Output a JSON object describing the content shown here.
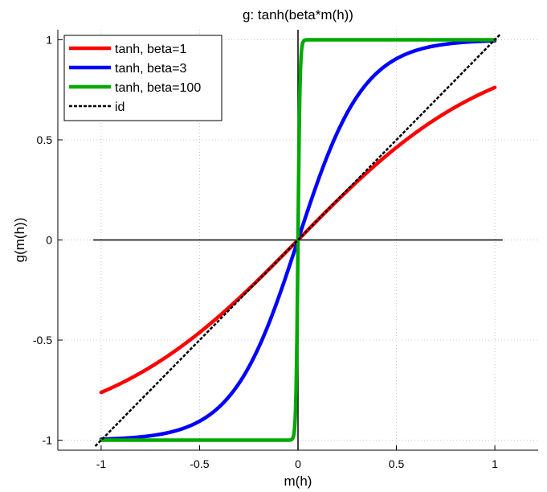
{
  "chart_data": {
    "type": "line",
    "title": "g: tanh(beta*m(h))",
    "xlabel": "m(h)",
    "ylabel": "g(m(h))",
    "xlim": [
      -1.22,
      1.22
    ],
    "ylim": [
      -1.05,
      1.05
    ],
    "xticks": [
      -1,
      -0.5,
      0,
      0.5,
      1
    ],
    "xtick_labels": [
      "-1",
      "-0.5",
      "0",
      "0.5",
      "1"
    ],
    "yticks": [
      -1,
      -0.5,
      0,
      0.5,
      1
    ],
    "ytick_labels": [
      "-1",
      "-0.5",
      "0",
      "0.5",
      "1"
    ],
    "grid": true,
    "legend_position": "top-left",
    "reference_lines": [
      {
        "orientation": "horizontal",
        "value": 0,
        "from": -1.04,
        "to": 1.04
      },
      {
        "orientation": "vertical",
        "value": 0
      }
    ],
    "series": [
      {
        "name": "tanh, beta=1",
        "color": "#ff0000",
        "style": "solid",
        "beta": 1,
        "x_range": [
          -1,
          1
        ],
        "x": [
          -1,
          -0.75,
          -0.5,
          -0.25,
          0,
          0.25,
          0.5,
          0.75,
          1
        ],
        "values": [
          -0.7616,
          -0.6351,
          -0.4621,
          -0.2449,
          0,
          0.2449,
          0.4621,
          0.6351,
          0.7616
        ]
      },
      {
        "name": "tanh, beta=3",
        "color": "#0000ff",
        "style": "solid",
        "beta": 3,
        "x_range": [
          -1,
          1
        ],
        "x": [
          -1,
          -0.75,
          -0.5,
          -0.25,
          0,
          0.25,
          0.5,
          0.75,
          1
        ],
        "values": [
          -0.9951,
          -0.978,
          -0.9051,
          -0.6351,
          0,
          0.6351,
          0.9051,
          0.978,
          0.9951
        ]
      },
      {
        "name": "tanh, beta=100",
        "color": "#00aa00",
        "style": "solid",
        "beta": 100,
        "x_range": [
          -1,
          1
        ],
        "x": [
          -1,
          -0.05,
          -0.02,
          -0.01,
          0,
          0.01,
          0.02,
          0.05,
          1
        ],
        "values": [
          -1,
          -1,
          -0.964,
          -0.7616,
          0,
          0.7616,
          0.964,
          1,
          1
        ]
      },
      {
        "name": "id",
        "color": "#000000",
        "style": "dashed",
        "x_range": [
          -1.03,
          1.03
        ],
        "x": [
          -1.03,
          1.03
        ],
        "values": [
          -1.03,
          1.03
        ]
      }
    ]
  }
}
